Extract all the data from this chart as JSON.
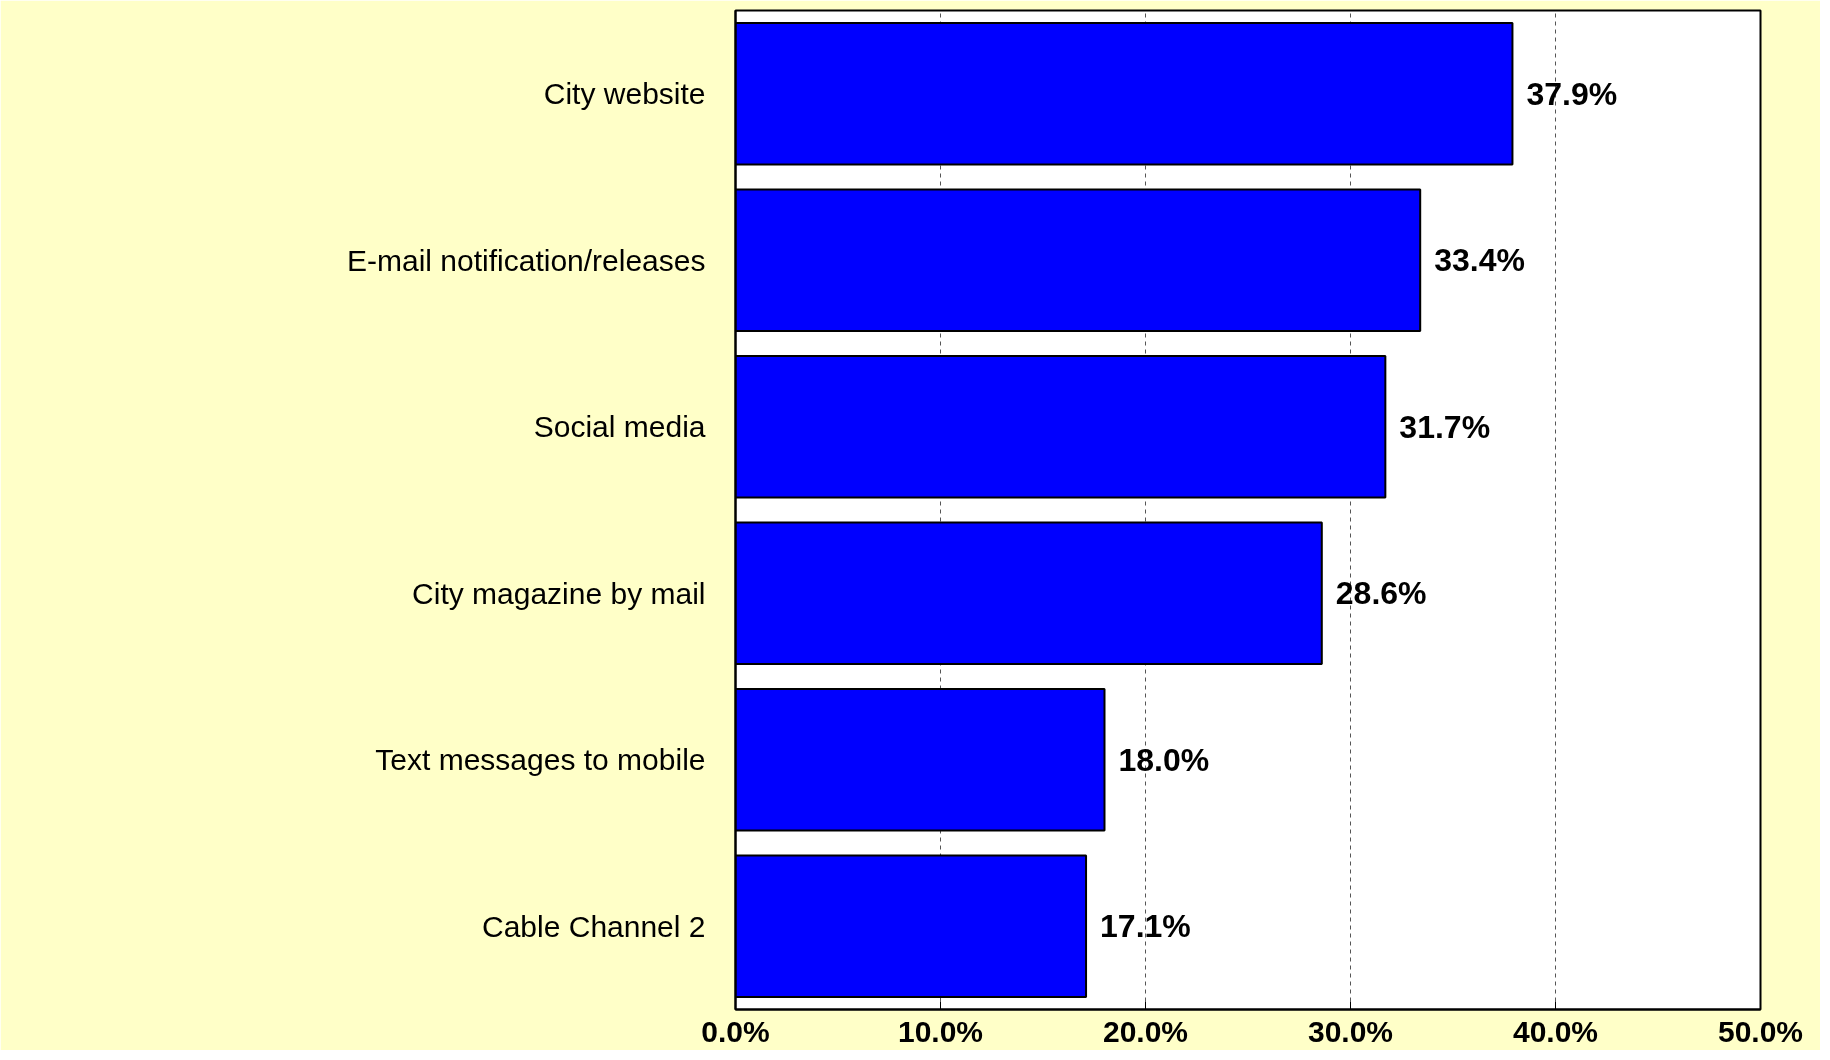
{
  "chart_data": {
    "type": "bar",
    "orientation": "horizontal",
    "categories": [
      "City website",
      "E-mail notification/releases",
      "Social media",
      "City magazine by mail",
      "Text messages to mobile",
      "Cable Channel 2"
    ],
    "values": [
      37.9,
      33.4,
      31.7,
      28.6,
      18.0,
      17.1
    ],
    "value_labels": [
      "37.9%",
      "33.4%",
      "31.7%",
      "28.6%",
      "18.0%",
      "17.1%"
    ],
    "color": "#0000ff",
    "xlim": [
      0,
      50
    ],
    "xticks": [
      {
        "value": 0,
        "label": "0.0%"
      },
      {
        "value": 10,
        "label": "10.0%"
      },
      {
        "value": 20,
        "label": "20.0%"
      },
      {
        "value": 30,
        "label": "30.0%"
      },
      {
        "value": 40,
        "label": "40.0%"
      },
      {
        "value": 50,
        "label": "50.0%"
      }
    ],
    "grid": "x"
  }
}
